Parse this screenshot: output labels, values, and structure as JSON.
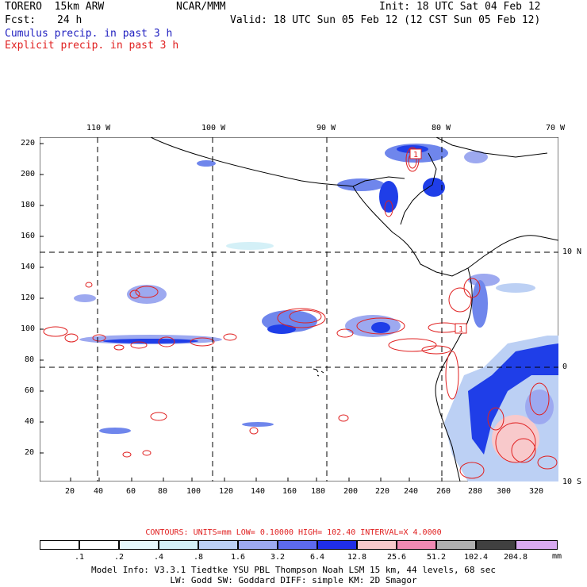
{
  "header": {
    "model": "TORERO  15km ARW",
    "org": "NCAR/MMM",
    "init": "Init: 18 UTC Sat 04 Feb 12",
    "fcst_label": "Fcst:",
    "fcst_value": "24 h",
    "valid": "Valid: 18 UTC Sun 05 Feb 12 (12 CST Sun 05 Feb 12)",
    "cumulus": "Cumulus precip. in past 3 h",
    "explicit": "Explicit precip. in past 3 h"
  },
  "map": {
    "top_lon_labels": [
      "110 W",
      "100 W",
      "90 W",
      "80 W",
      "70 W"
    ],
    "right_lat_labels": [
      "10 N",
      "0",
      "10 S"
    ],
    "y_ticks": [
      "220",
      "200",
      "180",
      "160",
      "140",
      "120",
      "100",
      "80",
      "60",
      "40",
      "20"
    ],
    "x_ticks": [
      "20",
      "40",
      "60",
      "80",
      "100",
      "120",
      "140",
      "160",
      "180",
      "200",
      "220",
      "240",
      "260",
      "280",
      "300",
      "320"
    ],
    "contour_high_label": "1",
    "colors": {
      "grid": "#000000",
      "coast": "#000000",
      "explicit_contour": "#e02020",
      "cumulus_light": "#bcd0f4",
      "cumulus_mid": "#6f86ec",
      "cumulus_dark": "#1f3ee8"
    }
  },
  "legend": {
    "contours_text": "CONTOURS:  UNITS=mm  LOW= 0.10000      HIGH=  102.40      INTERVAL=X  4.0000",
    "unit": "mm",
    "boundaries": [
      ".1",
      ".2",
      ".4",
      ".8",
      "1.6",
      "3.2",
      "6.4",
      "12.8",
      "25.6",
      "51.2",
      "102.4",
      "204.8"
    ],
    "bins": [
      "#ffffff",
      "#ffffff",
      "#e6f7fb",
      "#d4f0f7",
      "#bcd0f4",
      "#9da9f0",
      "#5d6aee",
      "#1f2ee8",
      "#f8c9cb",
      "#f08ab3",
      "#b0b0b0",
      "#404040",
      "#d8aaf0"
    ]
  },
  "footer": {
    "line1": "Model Info: V3.3.1   Tiedtke YSU PBL  Thompson     Noah LSM  15 km,   44 levels,   68 sec",
    "line2": "LW: Godd SW: Goddard DIFF: simple KM: 2D Smagor"
  }
}
